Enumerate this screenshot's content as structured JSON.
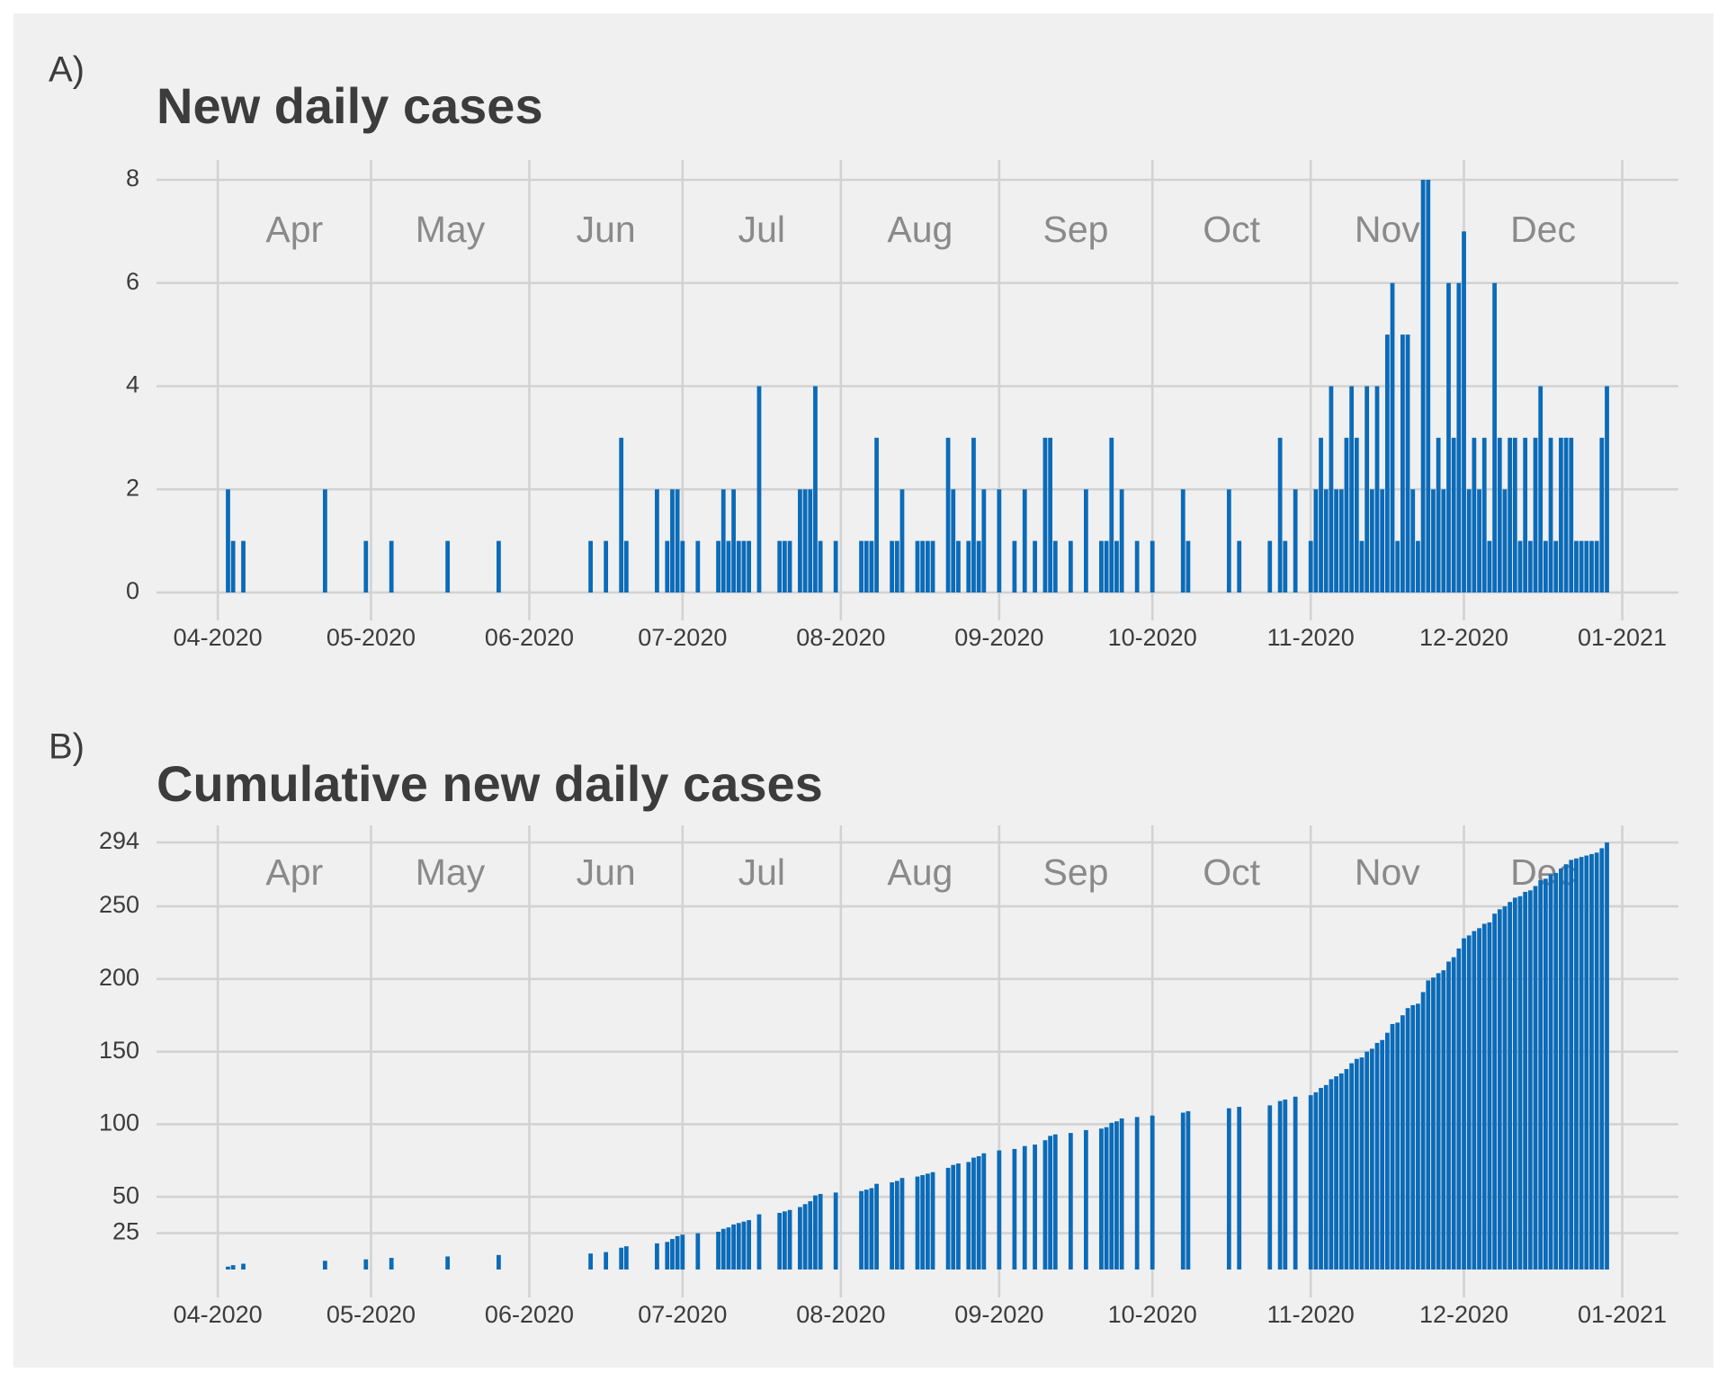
{
  "chart_data": [
    {
      "type": "bar",
      "panel_label": "A)",
      "title": "New daily cases",
      "color": "#0b6bb8",
      "grid": true,
      "x": [
        "2020-04-03",
        "2020-04-04",
        "2020-04-06",
        "2020-04-22",
        "2020-04-30",
        "2020-05-05",
        "2020-05-16",
        "2020-05-26",
        "2020-06-13",
        "2020-06-16",
        "2020-06-19",
        "2020-06-20",
        "2020-06-26",
        "2020-06-28",
        "2020-06-29",
        "2020-06-30",
        "2020-07-01",
        "2020-07-04",
        "2020-07-08",
        "2020-07-09",
        "2020-07-10",
        "2020-07-11",
        "2020-07-12",
        "2020-07-13",
        "2020-07-14",
        "2020-07-16",
        "2020-07-20",
        "2020-07-21",
        "2020-07-22",
        "2020-07-24",
        "2020-07-25",
        "2020-07-26",
        "2020-07-27",
        "2020-07-28",
        "2020-07-31",
        "2020-08-05",
        "2020-08-06",
        "2020-08-07",
        "2020-08-08",
        "2020-08-11",
        "2020-08-12",
        "2020-08-13",
        "2020-08-16",
        "2020-08-17",
        "2020-08-18",
        "2020-08-19",
        "2020-08-22",
        "2020-08-23",
        "2020-08-24",
        "2020-08-26",
        "2020-08-27",
        "2020-08-28",
        "2020-08-29",
        "2020-09-01",
        "2020-09-04",
        "2020-09-06",
        "2020-09-08",
        "2020-09-10",
        "2020-09-11",
        "2020-09-12",
        "2020-09-15",
        "2020-09-18",
        "2020-09-21",
        "2020-09-22",
        "2020-09-23",
        "2020-09-24",
        "2020-09-25",
        "2020-09-28",
        "2020-10-01",
        "2020-10-07",
        "2020-10-08",
        "2020-10-16",
        "2020-10-18",
        "2020-10-24",
        "2020-10-26",
        "2020-10-27",
        "2020-10-29",
        "2020-11-01",
        "2020-11-02",
        "2020-11-03",
        "2020-11-04",
        "2020-11-05",
        "2020-11-06",
        "2020-11-07",
        "2020-11-08",
        "2020-11-09",
        "2020-11-10",
        "2020-11-11",
        "2020-11-12",
        "2020-11-13",
        "2020-11-14",
        "2020-11-15",
        "2020-11-16",
        "2020-11-17",
        "2020-11-18",
        "2020-11-19",
        "2020-11-20",
        "2020-11-21",
        "2020-11-22",
        "2020-11-23",
        "2020-11-24",
        "2020-11-25",
        "2020-11-26",
        "2020-11-27",
        "2020-11-28",
        "2020-11-29",
        "2020-11-30",
        "2020-12-01",
        "2020-12-02",
        "2020-12-03",
        "2020-12-04",
        "2020-12-05",
        "2020-12-06",
        "2020-12-07",
        "2020-12-08",
        "2020-12-09",
        "2020-12-10",
        "2020-12-11",
        "2020-12-12",
        "2020-12-13",
        "2020-12-14",
        "2020-12-15",
        "2020-12-16",
        "2020-12-17",
        "2020-12-18",
        "2020-12-19",
        "2020-12-20",
        "2020-12-21",
        "2020-12-22",
        "2020-12-23",
        "2020-12-24",
        "2020-12-25",
        "2020-12-26",
        "2020-12-27",
        "2020-12-28",
        "2020-12-29"
      ],
      "values": [
        2,
        1,
        1,
        2,
        1,
        1,
        1,
        1,
        1,
        1,
        3,
        1,
        2,
        1,
        2,
        2,
        1,
        1,
        1,
        2,
        1,
        2,
        1,
        1,
        1,
        4,
        1,
        1,
        1,
        2,
        2,
        2,
        4,
        1,
        1,
        1,
        1,
        1,
        3,
        1,
        1,
        2,
        1,
        1,
        1,
        1,
        3,
        2,
        1,
        1,
        3,
        1,
        2,
        2,
        1,
        2,
        1,
        3,
        3,
        1,
        1,
        2,
        1,
        1,
        3,
        1,
        2,
        1,
        1,
        2,
        1,
        2,
        1,
        1,
        3,
        1,
        2,
        1,
        2,
        3,
        2,
        4,
        2,
        2,
        3,
        4,
        3,
        1,
        4,
        2,
        4,
        2,
        5,
        6,
        1,
        5,
        5,
        2,
        1,
        8,
        8,
        2,
        3,
        2,
        6,
        3,
        6,
        7,
        2,
        3,
        2,
        3,
        1,
        6,
        3,
        2,
        3,
        3,
        1,
        3,
        1,
        3,
        4,
        1,
        3,
        1,
        3,
        3,
        3,
        1,
        1,
        1,
        1,
        1,
        3,
        4
      ],
      "xlim": [
        "2020-03-20",
        "2021-01-12"
      ],
      "xticks": [
        {
          "value": "2020-04-01",
          "label": "04-2020"
        },
        {
          "value": "2020-05-01",
          "label": "05-2020"
        },
        {
          "value": "2020-06-01",
          "label": "06-2020"
        },
        {
          "value": "2020-07-01",
          "label": "07-2020"
        },
        {
          "value": "2020-08-01",
          "label": "08-2020"
        },
        {
          "value": "2020-09-01",
          "label": "09-2020"
        },
        {
          "value": "2020-10-01",
          "label": "10-2020"
        },
        {
          "value": "2020-11-01",
          "label": "11-2020"
        },
        {
          "value": "2020-12-01",
          "label": "12-2020"
        },
        {
          "value": "2021-01-01",
          "label": "01-2021"
        }
      ],
      "month_labels": [
        "Apr",
        "May",
        "Jun",
        "Jul",
        "Aug",
        "Sep",
        "Oct",
        "Nov",
        "Dec"
      ],
      "ylim": [
        0,
        8
      ],
      "yticks": [
        0,
        2,
        4,
        6,
        8
      ]
    },
    {
      "type": "bar",
      "panel_label": "B)",
      "title": "Cumulative new daily cases",
      "color": "#0b6bb8",
      "grid": true,
      "x": [
        "2020-04-03",
        "2020-04-04",
        "2020-04-06",
        "2020-04-22",
        "2020-04-30",
        "2020-05-05",
        "2020-05-16",
        "2020-05-26",
        "2020-06-13",
        "2020-06-16",
        "2020-06-19",
        "2020-06-20",
        "2020-06-26",
        "2020-06-28",
        "2020-06-29",
        "2020-06-30",
        "2020-07-01",
        "2020-07-04",
        "2020-07-08",
        "2020-07-09",
        "2020-07-10",
        "2020-07-11",
        "2020-07-12",
        "2020-07-13",
        "2020-07-14",
        "2020-07-16",
        "2020-07-20",
        "2020-07-21",
        "2020-07-22",
        "2020-07-24",
        "2020-07-25",
        "2020-07-26",
        "2020-07-27",
        "2020-07-28",
        "2020-07-31",
        "2020-08-05",
        "2020-08-06",
        "2020-08-07",
        "2020-08-08",
        "2020-08-11",
        "2020-08-12",
        "2020-08-13",
        "2020-08-16",
        "2020-08-17",
        "2020-08-18",
        "2020-08-19",
        "2020-08-22",
        "2020-08-23",
        "2020-08-24",
        "2020-08-26",
        "2020-08-27",
        "2020-08-28",
        "2020-08-29",
        "2020-09-01",
        "2020-09-04",
        "2020-09-06",
        "2020-09-08",
        "2020-09-10",
        "2020-09-11",
        "2020-09-12",
        "2020-09-15",
        "2020-09-18",
        "2020-09-21",
        "2020-09-22",
        "2020-09-23",
        "2020-09-24",
        "2020-09-25",
        "2020-09-28",
        "2020-10-01",
        "2020-10-07",
        "2020-10-08",
        "2020-10-16",
        "2020-10-18",
        "2020-10-24",
        "2020-10-26",
        "2020-10-27",
        "2020-10-29",
        "2020-11-01",
        "2020-11-02",
        "2020-11-03",
        "2020-11-04",
        "2020-11-05",
        "2020-11-06",
        "2020-11-07",
        "2020-11-08",
        "2020-11-09",
        "2020-11-10",
        "2020-11-11",
        "2020-11-12",
        "2020-11-13",
        "2020-11-14",
        "2020-11-15",
        "2020-11-16",
        "2020-11-17",
        "2020-11-18",
        "2020-11-19",
        "2020-11-20",
        "2020-11-21",
        "2020-11-22",
        "2020-11-23",
        "2020-11-24",
        "2020-11-25",
        "2020-11-26",
        "2020-11-27",
        "2020-11-28",
        "2020-11-29",
        "2020-11-30",
        "2020-12-01",
        "2020-12-02",
        "2020-12-03",
        "2020-12-04",
        "2020-12-05",
        "2020-12-06",
        "2020-12-07",
        "2020-12-08",
        "2020-12-09",
        "2020-12-10",
        "2020-12-11",
        "2020-12-12",
        "2020-12-13",
        "2020-12-14",
        "2020-12-15",
        "2020-12-16",
        "2020-12-17",
        "2020-12-18",
        "2020-12-19",
        "2020-12-20",
        "2020-12-21",
        "2020-12-22",
        "2020-12-23",
        "2020-12-24",
        "2020-12-25",
        "2020-12-26",
        "2020-12-27",
        "2020-12-28",
        "2020-12-29"
      ],
      "values": [
        2,
        3,
        4,
        6,
        7,
        8,
        9,
        10,
        11,
        12,
        15,
        16,
        18,
        19,
        21,
        23,
        24,
        25,
        26,
        28,
        29,
        31,
        32,
        33,
        34,
        38,
        39,
        40,
        41,
        43,
        45,
        47,
        51,
        52,
        53,
        54,
        55,
        56,
        59,
        60,
        61,
        63,
        64,
        65,
        66,
        67,
        70,
        72,
        73,
        74,
        77,
        78,
        80,
        82,
        83,
        85,
        86,
        89,
        92,
        93,
        94,
        96,
        97,
        98,
        101,
        102,
        104,
        105,
        106,
        108,
        109,
        111,
        112,
        113,
        116,
        117,
        119,
        120,
        122,
        125,
        127,
        131,
        133,
        135,
        138,
        142,
        145,
        146,
        150,
        152,
        156,
        158,
        163,
        169,
        170,
        175,
        180,
        182,
        183,
        191,
        199,
        201,
        204,
        206,
        212,
        215,
        221,
        228,
        230,
        233,
        235,
        238,
        239,
        245,
        248,
        250,
        253,
        256,
        257,
        260,
        261,
        264,
        268,
        269,
        272,
        273,
        276,
        279,
        282,
        283,
        284,
        285,
        286,
        287,
        290,
        294
      ],
      "xlim": [
        "2020-03-20",
        "2021-01-12"
      ],
      "xticks": [
        {
          "value": "2020-04-01",
          "label": "04-2020"
        },
        {
          "value": "2020-05-01",
          "label": "05-2020"
        },
        {
          "value": "2020-06-01",
          "label": "06-2020"
        },
        {
          "value": "2020-07-01",
          "label": "07-2020"
        },
        {
          "value": "2020-08-01",
          "label": "08-2020"
        },
        {
          "value": "2020-09-01",
          "label": "09-2020"
        },
        {
          "value": "2020-10-01",
          "label": "10-2020"
        },
        {
          "value": "2020-11-01",
          "label": "11-2020"
        },
        {
          "value": "2020-12-01",
          "label": "12-2020"
        },
        {
          "value": "2021-01-01",
          "label": "01-2021"
        }
      ],
      "month_labels": [
        "Apr",
        "May",
        "Jun",
        "Jul",
        "Aug",
        "Sep",
        "Oct",
        "Nov",
        "Dec"
      ],
      "ylim": [
        0,
        294
      ],
      "yticks": [
        25,
        50,
        100,
        150,
        200,
        250,
        294
      ]
    }
  ]
}
